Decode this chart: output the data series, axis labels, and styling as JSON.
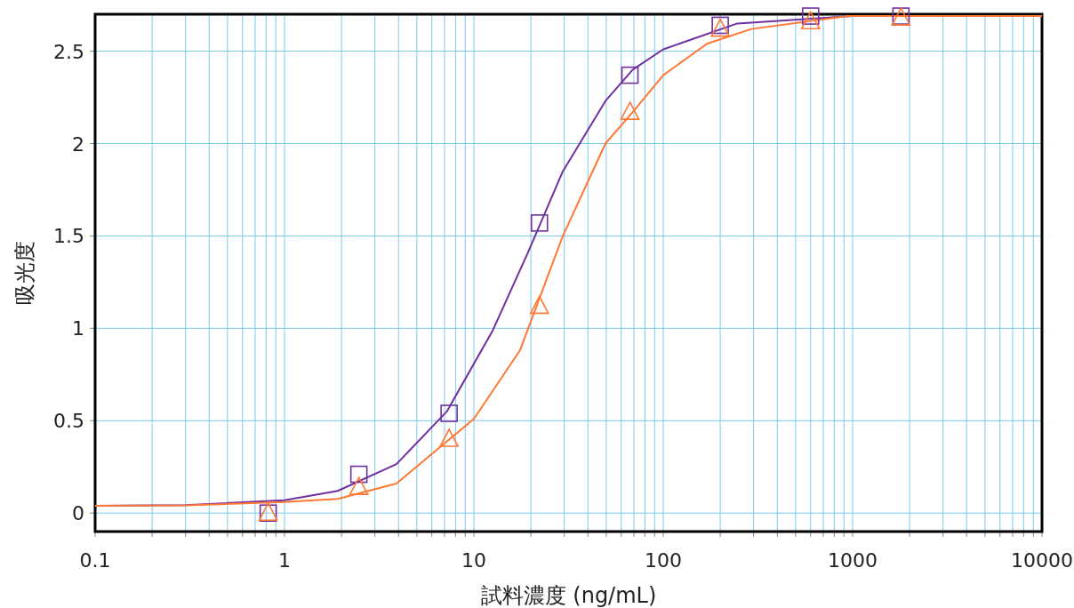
{
  "chart_data": {
    "type": "scatter",
    "xlabel": "試料濃度 (ng/mL)",
    "ylabel": "吸光度",
    "log": "x",
    "grid": true,
    "xlim": [
      0.1,
      10000
    ],
    "ylim": [
      -0.1,
      2.7
    ],
    "xticks": [
      0.1,
      {
        "value": 0.2,
        "label": null
      },
      {
        "value": 0.3,
        "label": null
      },
      {
        "value": 0.4,
        "label": null
      },
      {
        "value": 0.5,
        "label": null
      },
      {
        "value": 0.6,
        "label": null
      },
      {
        "value": 0.7,
        "label": null
      },
      {
        "value": 0.8,
        "label": null
      },
      {
        "value": 0.9,
        "label": null
      },
      1,
      {
        "value": 2,
        "label": null
      },
      {
        "value": 3,
        "label": null
      },
      {
        "value": 4,
        "label": null
      },
      {
        "value": 5,
        "label": null
      },
      {
        "value": 6,
        "label": null
      },
      {
        "value": 7,
        "label": null
      },
      {
        "value": 8,
        "label": null
      },
      {
        "value": 9,
        "label": null
      },
      10,
      {
        "value": 20,
        "label": null
      },
      {
        "value": 30,
        "label": null
      },
      {
        "value": 40,
        "label": null
      },
      {
        "value": 50,
        "label": null
      },
      {
        "value": 60,
        "label": null
      },
      {
        "value": 70,
        "label": null
      },
      {
        "value": 80,
        "label": null
      },
      {
        "value": 90,
        "label": null
      },
      100,
      {
        "value": 200,
        "label": null
      },
      {
        "value": 300,
        "label": null
      },
      {
        "value": 400,
        "label": null
      },
      {
        "value": 500,
        "label": null
      },
      {
        "value": 600,
        "label": null
      },
      {
        "value": 700,
        "label": null
      },
      {
        "value": 800,
        "label": null
      },
      {
        "value": 900,
        "label": null
      },
      1000,
      {
        "value": 2000,
        "label": null
      },
      {
        "value": 3000,
        "label": null
      },
      {
        "value": 4000,
        "label": null
      },
      {
        "value": 5000,
        "label": null
      },
      {
        "value": 6000,
        "label": null
      },
      {
        "value": 7000,
        "label": null
      },
      {
        "value": 8000,
        "label": null
      },
      {
        "value": 9000,
        "label": null
      },
      10000
    ],
    "yticks": [
      0,
      0.5,
      1,
      1.5,
      2,
      2.5
    ],
    "series": [
      {
        "type": "line",
        "color": "#7030a0",
        "x": [
          0.1,
          0.3,
          1,
          1.91,
          3.9,
          7.2,
          12.6,
          19.3,
          29.5,
          49.5,
          69,
          100,
          246,
          1000,
          10000
        ],
        "values": [
          0.04,
          0.043,
          0.07,
          0.12,
          0.265,
          0.55,
          0.99,
          1.41,
          1.85,
          2.23,
          2.4,
          2.51,
          2.65,
          2.69,
          2.69
        ]
      },
      {
        "type": "line",
        "color": "#ff7833",
        "x": [
          0.1,
          0.3,
          1,
          1.91,
          3.9,
          10,
          17.5,
          29.5,
          49.5,
          69,
          100,
          170,
          292,
          946,
          10000
        ],
        "values": [
          0.04,
          0.042,
          0.06,
          0.077,
          0.16,
          0.51,
          0.88,
          1.5,
          2.0,
          2.17,
          2.37,
          2.54,
          2.62,
          2.69,
          2.69
        ]
      },
      {
        "marker": "square",
        "color": "#7030a0",
        "x": [
          0.82,
          2.47,
          7.4,
          22.2,
          66.7,
          200,
          600,
          1800
        ],
        "values": [
          0,
          0.21,
          0.54,
          1.57,
          2.37,
          2.64,
          2.69,
          2.69
        ]
      },
      {
        "marker": "triangle",
        "color": "#ff7833",
        "x": [
          0.82,
          2.47,
          7.4,
          22.2,
          66.7,
          200,
          600,
          1800
        ],
        "values": [
          0,
          0.14,
          0.4,
          1.12,
          2.17,
          2.62,
          2.66,
          2.68
        ]
      }
    ]
  }
}
